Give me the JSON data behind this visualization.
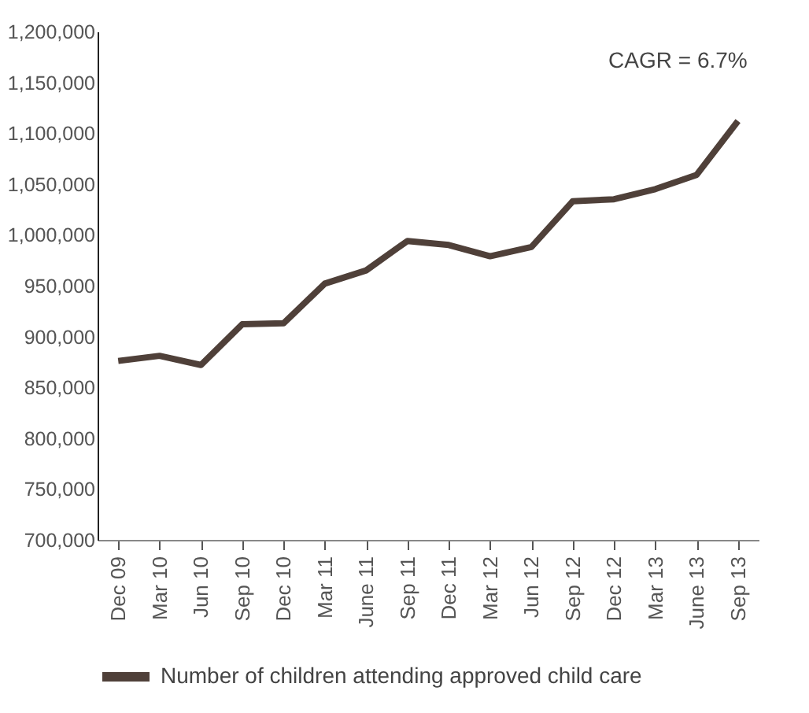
{
  "chart_data": {
    "type": "line",
    "categories": [
      "Dec 09",
      "Mar 10",
      "Jun 10",
      "Sep 10",
      "Dec 10",
      "Mar 11",
      "June 11",
      "Sep 11",
      "Dec 11",
      "Mar 12",
      "Jun 12",
      "Sep 12",
      "Dec 12",
      "Mar 13",
      "June 13",
      "Sep 13"
    ],
    "series": [
      {
        "name": "Number of children attending approved child care",
        "color": "#4f4039",
        "values": [
          876000,
          881000,
          872000,
          912000,
          913000,
          952000,
          965000,
          994000,
          990000,
          979000,
          988000,
          1033000,
          1035000,
          1045000,
          1059000,
          1112000
        ]
      }
    ],
    "ylim": [
      700000,
      1200000
    ],
    "yticks": [
      {
        "value": 700000,
        "label": "700,000"
      },
      {
        "value": 750000,
        "label": "750,000"
      },
      {
        "value": 800000,
        "label": "800,000"
      },
      {
        "value": 850000,
        "label": "850,000"
      },
      {
        "value": 900000,
        "label": "900,000"
      },
      {
        "value": 950000,
        "label": "950,000"
      },
      {
        "value": 1000000,
        "label": "1,000,000"
      },
      {
        "value": 1050000,
        "label": "1,050,000"
      },
      {
        "value": 1100000,
        "label": "1,100,000"
      },
      {
        "value": 1150000,
        "label": "1,150,000"
      },
      {
        "value": 1200000,
        "label": "1,200,000"
      }
    ],
    "annotations": [
      {
        "text": "CAGR = 6.7%",
        "x": "Sep 13",
        "y": 1112000
      }
    ],
    "legend": "bottom",
    "grid": false
  }
}
